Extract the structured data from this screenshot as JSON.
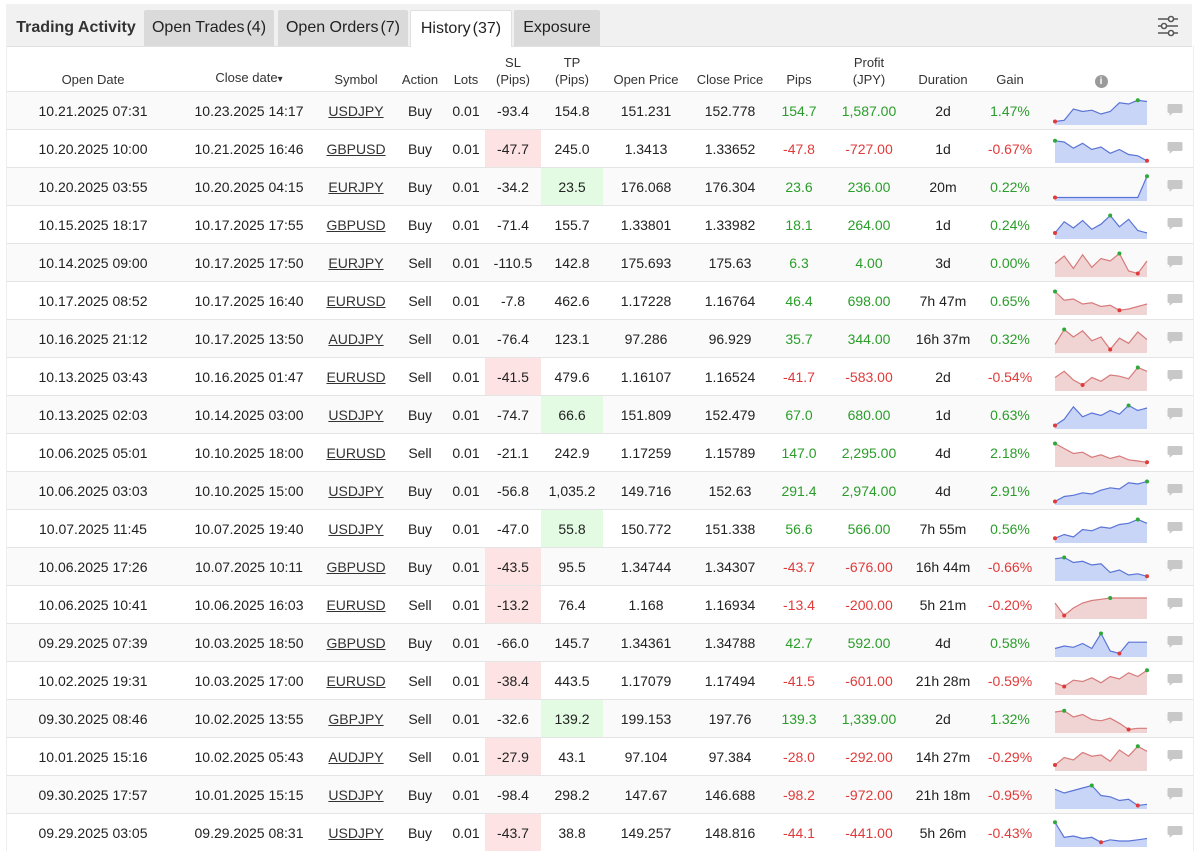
{
  "tabs": {
    "title": "Trading Activity",
    "items": [
      {
        "label": "Open Trades",
        "count": "(4)"
      },
      {
        "label": "Open Orders",
        "count": "(7)"
      },
      {
        "label": "History",
        "count": "(37)"
      },
      {
        "label": "Exposure",
        "count": ""
      }
    ],
    "active": "History"
  },
  "filter_icon": "sliders-icon",
  "columns": {
    "open_date": "Open Date",
    "close_date": "Close date",
    "sort_arrow": "▾",
    "symbol": "Symbol",
    "action": "Action",
    "lots": "Lots",
    "sl": "SL",
    "sl_unit": "(Pips)",
    "tp": "TP",
    "tp_unit": "(Pips)",
    "open_price": "Open Price",
    "close_price": "Close Price",
    "pips": "Pips",
    "profit": "Profit",
    "profit_unit": "(JPY)",
    "duration": "Duration",
    "gain": "Gain",
    "info_icon": "i"
  },
  "colors": {
    "positive": "#2a9d2a",
    "negative": "#e03a3a",
    "spark_pos_fill": "#c9d5f7",
    "spark_pos_line": "#5a74d6",
    "spark_neg_fill": "#f0d4d4",
    "spark_neg_line": "#d77a7a"
  },
  "rows": [
    {
      "open": "10.21.2025 07:31",
      "close": "10.23.2025 14:17",
      "symbol": "USDJPY",
      "action": "Buy",
      "lots": "0.01",
      "sl": "-93.4",
      "tp": "154.8",
      "open_price": "151.231",
      "close_price": "152.778",
      "pips": "154.7",
      "profit": "1,587.00",
      "duration": "2d",
      "gain": "1.47%",
      "hl": "",
      "trend": "pos",
      "spark": [
        0.1,
        0.15,
        0.6,
        0.5,
        0.55,
        0.4,
        0.5,
        0.85,
        0.8,
        0.95,
        0.9
      ]
    },
    {
      "open": "10.20.2025 10:00",
      "close": "10.21.2025 16:46",
      "symbol": "GBPUSD",
      "action": "Buy",
      "lots": "0.01",
      "sl": "-47.7",
      "tp": "245.0",
      "open_price": "1.3413",
      "close_price": "1.33652",
      "pips": "-47.8",
      "profit": "-727.00",
      "duration": "1d",
      "gain": "-0.67%",
      "hl": "sl",
      "trend": "pos",
      "spark": [
        0.85,
        0.8,
        0.55,
        0.75,
        0.5,
        0.6,
        0.35,
        0.5,
        0.3,
        0.25,
        0.05
      ]
    },
    {
      "open": "10.20.2025 03:55",
      "close": "10.20.2025 04:15",
      "symbol": "EURJPY",
      "action": "Buy",
      "lots": "0.01",
      "sl": "-34.2",
      "tp": "23.5",
      "open_price": "176.068",
      "close_price": "176.304",
      "pips": "23.6",
      "profit": "236.00",
      "duration": "20m",
      "gain": "0.22%",
      "hl": "tp",
      "trend": "pos",
      "spark": [
        0.1,
        0.1,
        0.1,
        0.1,
        0.1,
        0.1,
        0.1,
        0.1,
        0.1,
        0.1,
        0.95
      ]
    },
    {
      "open": "10.15.2025 18:17",
      "close": "10.17.2025 17:55",
      "symbol": "GBPUSD",
      "action": "Buy",
      "lots": "0.01",
      "sl": "-71.4",
      "tp": "155.7",
      "open_price": "1.33801",
      "close_price": "1.33982",
      "pips": "18.1",
      "profit": "264.00",
      "duration": "1d",
      "gain": "0.24%",
      "hl": "",
      "trend": "pos",
      "spark": [
        0.2,
        0.65,
        0.4,
        0.7,
        0.35,
        0.55,
        0.9,
        0.45,
        0.75,
        0.3,
        0.2
      ]
    },
    {
      "open": "10.14.2025 09:00",
      "close": "10.17.2025 17:50",
      "symbol": "EURJPY",
      "action": "Sell",
      "lots": "0.01",
      "sl": "-110.5",
      "tp": "142.8",
      "open_price": "175.693",
      "close_price": "175.63",
      "pips": "6.3",
      "profit": "4.00",
      "duration": "3d",
      "gain": "0.00%",
      "hl": "",
      "trend": "neg",
      "spark": [
        0.5,
        0.8,
        0.3,
        0.85,
        0.35,
        0.7,
        0.6,
        0.9,
        0.2,
        0.1,
        0.6
      ]
    },
    {
      "open": "10.17.2025 08:52",
      "close": "10.17.2025 16:40",
      "symbol": "EURUSD",
      "action": "Sell",
      "lots": "0.01",
      "sl": "-7.8",
      "tp": "462.6",
      "open_price": "1.17228",
      "close_price": "1.16764",
      "pips": "46.4",
      "profit": "698.00",
      "duration": "7h 47m",
      "gain": "0.65%",
      "hl": "",
      "trend": "neg",
      "spark": [
        0.9,
        0.55,
        0.6,
        0.4,
        0.45,
        0.3,
        0.35,
        0.15,
        0.2,
        0.3,
        0.4
      ]
    },
    {
      "open": "10.16.2025 21:12",
      "close": "10.17.2025 13:50",
      "symbol": "AUDJPY",
      "action": "Sell",
      "lots": "0.01",
      "sl": "-76.4",
      "tp": "123.1",
      "open_price": "97.286",
      "close_price": "96.929",
      "pips": "35.7",
      "profit": "344.00",
      "duration": "16h 37m",
      "gain": "0.32%",
      "hl": "",
      "trend": "neg",
      "spark": [
        0.3,
        0.9,
        0.6,
        0.85,
        0.45,
        0.6,
        0.1,
        0.55,
        0.35,
        0.8,
        0.5
      ]
    },
    {
      "open": "10.13.2025 03:43",
      "close": "10.16.2025 01:47",
      "symbol": "EURUSD",
      "action": "Sell",
      "lots": "0.01",
      "sl": "-41.5",
      "tp": "479.6",
      "open_price": "1.16107",
      "close_price": "1.16524",
      "pips": "-41.7",
      "profit": "-583.00",
      "duration": "2d",
      "gain": "-0.54%",
      "hl": "sl",
      "trend": "neg",
      "spark": [
        0.5,
        0.75,
        0.4,
        0.2,
        0.5,
        0.35,
        0.6,
        0.55,
        0.45,
        0.9,
        0.75
      ]
    },
    {
      "open": "10.13.2025 02:03",
      "close": "10.14.2025 03:00",
      "symbol": "USDJPY",
      "action": "Buy",
      "lots": "0.01",
      "sl": "-74.7",
      "tp": "66.6",
      "open_price": "151.809",
      "close_price": "152.479",
      "pips": "67.0",
      "profit": "680.00",
      "duration": "1d",
      "gain": "0.63%",
      "hl": "tp",
      "trend": "pos",
      "spark": [
        0.1,
        0.35,
        0.85,
        0.45,
        0.6,
        0.5,
        0.7,
        0.55,
        0.9,
        0.7,
        0.8
      ]
    },
    {
      "open": "10.06.2025 05:01",
      "close": "10.10.2025 18:00",
      "symbol": "EURUSD",
      "action": "Sell",
      "lots": "0.01",
      "sl": "-21.1",
      "tp": "242.9",
      "open_price": "1.17259",
      "close_price": "1.15789",
      "pips": "147.0",
      "profit": "2,295.00",
      "duration": "4d",
      "gain": "2.18%",
      "hl": "",
      "trend": "neg",
      "spark": [
        0.9,
        0.7,
        0.5,
        0.55,
        0.35,
        0.45,
        0.3,
        0.4,
        0.25,
        0.2,
        0.15
      ]
    },
    {
      "open": "10.06.2025 03:03",
      "close": "10.10.2025 15:00",
      "symbol": "USDJPY",
      "action": "Buy",
      "lots": "0.01",
      "sl": "-56.8",
      "tp": "1,035.2",
      "open_price": "149.716",
      "close_price": "152.63",
      "pips": "291.4",
      "profit": "2,974.00",
      "duration": "4d",
      "gain": "2.91%",
      "hl": "",
      "trend": "pos",
      "spark": [
        0.1,
        0.3,
        0.35,
        0.45,
        0.4,
        0.55,
        0.65,
        0.6,
        0.85,
        0.8,
        0.9
      ]
    },
    {
      "open": "10.07.2025 11:45",
      "close": "10.07.2025 19:40",
      "symbol": "USDJPY",
      "action": "Buy",
      "lots": "0.01",
      "sl": "-47.0",
      "tp": "55.8",
      "open_price": "150.772",
      "close_price": "151.338",
      "pips": "56.6",
      "profit": "566.00",
      "duration": "7h 55m",
      "gain": "0.56%",
      "hl": "tp",
      "trend": "pos",
      "spark": [
        0.15,
        0.3,
        0.2,
        0.5,
        0.45,
        0.6,
        0.55,
        0.7,
        0.75,
        0.9,
        0.75
      ]
    },
    {
      "open": "10.06.2025 17:26",
      "close": "10.07.2025 10:11",
      "symbol": "GBPUSD",
      "action": "Buy",
      "lots": "0.01",
      "sl": "-43.5",
      "tp": "95.5",
      "open_price": "1.34744",
      "close_price": "1.34307",
      "pips": "-43.7",
      "profit": "-676.00",
      "duration": "16h 44m",
      "gain": "-0.66%",
      "hl": "sl",
      "trend": "pos",
      "spark": [
        0.85,
        0.9,
        0.7,
        0.75,
        0.6,
        0.65,
        0.3,
        0.4,
        0.2,
        0.25,
        0.15
      ]
    },
    {
      "open": "10.06.2025 10:41",
      "close": "10.06.2025 16:03",
      "symbol": "EURUSD",
      "action": "Sell",
      "lots": "0.01",
      "sl": "-13.2",
      "tp": "76.4",
      "open_price": "1.168",
      "close_price": "1.16934",
      "pips": "-13.4",
      "profit": "-200.00",
      "duration": "5h 21m",
      "gain": "-0.20%",
      "hl": "sl",
      "trend": "neg",
      "spark": [
        0.6,
        0.1,
        0.4,
        0.6,
        0.7,
        0.75,
        0.8,
        0.8,
        0.8,
        0.8,
        0.8
      ]
    },
    {
      "open": "09.29.2025 07:39",
      "close": "10.03.2025 18:50",
      "symbol": "GBPUSD",
      "action": "Buy",
      "lots": "0.01",
      "sl": "-66.0",
      "tp": "145.7",
      "open_price": "1.34361",
      "close_price": "1.34788",
      "pips": "42.7",
      "profit": "592.00",
      "duration": "4d",
      "gain": "0.58%",
      "hl": "",
      "trend": "pos",
      "spark": [
        0.3,
        0.4,
        0.35,
        0.5,
        0.3,
        0.9,
        0.2,
        0.1,
        0.55,
        0.55,
        0.55
      ]
    },
    {
      "open": "10.02.2025 19:31",
      "close": "10.03.2025 17:00",
      "symbol": "EURUSD",
      "action": "Sell",
      "lots": "0.01",
      "sl": "-38.4",
      "tp": "443.5",
      "open_price": "1.17079",
      "close_price": "1.17494",
      "pips": "-41.5",
      "profit": "-601.00",
      "duration": "21h 28m",
      "gain": "-0.59%",
      "hl": "sl",
      "trend": "neg",
      "spark": [
        0.45,
        0.3,
        0.55,
        0.5,
        0.65,
        0.45,
        0.7,
        0.6,
        0.85,
        0.7,
        0.95
      ]
    },
    {
      "open": "09.30.2025 08:46",
      "close": "10.02.2025 13:55",
      "symbol": "GBPJPY",
      "action": "Sell",
      "lots": "0.01",
      "sl": "-32.6",
      "tp": "139.2",
      "open_price": "199.153",
      "close_price": "197.76",
      "pips": "139.3",
      "profit": "1,339.00",
      "duration": "2d",
      "gain": "1.32%",
      "hl": "tp",
      "trend": "neg",
      "spark": [
        0.8,
        0.85,
        0.6,
        0.7,
        0.5,
        0.45,
        0.55,
        0.35,
        0.1,
        0.15,
        0.15
      ]
    },
    {
      "open": "10.01.2025 15:16",
      "close": "10.02.2025 05:43",
      "symbol": "AUDJPY",
      "action": "Sell",
      "lots": "0.01",
      "sl": "-27.9",
      "tp": "43.1",
      "open_price": "97.104",
      "close_price": "97.384",
      "pips": "-28.0",
      "profit": "-292.00",
      "duration": "14h 27m",
      "gain": "-0.29%",
      "hl": "sl",
      "trend": "neg",
      "spark": [
        0.2,
        0.5,
        0.4,
        0.7,
        0.55,
        0.6,
        0.35,
        0.8,
        0.55,
        0.95,
        0.75
      ]
    },
    {
      "open": "09.30.2025 17:57",
      "close": "10.01.2025 15:15",
      "symbol": "USDJPY",
      "action": "Buy",
      "lots": "0.01",
      "sl": "-98.4",
      "tp": "298.2",
      "open_price": "147.67",
      "close_price": "146.688",
      "pips": "-98.2",
      "profit": "-972.00",
      "duration": "21h 18m",
      "gain": "-0.95%",
      "hl": "",
      "trend": "pos",
      "spark": [
        0.75,
        0.6,
        0.7,
        0.8,
        0.9,
        0.5,
        0.45,
        0.3,
        0.35,
        0.1,
        0.15
      ]
    },
    {
      "open": "09.29.2025 03:05",
      "close": "09.29.2025 08:31",
      "symbol": "USDJPY",
      "action": "Buy",
      "lots": "0.01",
      "sl": "-43.7",
      "tp": "38.8",
      "open_price": "149.257",
      "close_price": "148.816",
      "pips": "-44.1",
      "profit": "-441.00",
      "duration": "5h 26m",
      "gain": "-0.43%",
      "hl": "sl",
      "trend": "pos",
      "spark": [
        0.95,
        0.35,
        0.4,
        0.3,
        0.35,
        0.15,
        0.25,
        0.2,
        0.2,
        0.25,
        0.3
      ]
    }
  ]
}
